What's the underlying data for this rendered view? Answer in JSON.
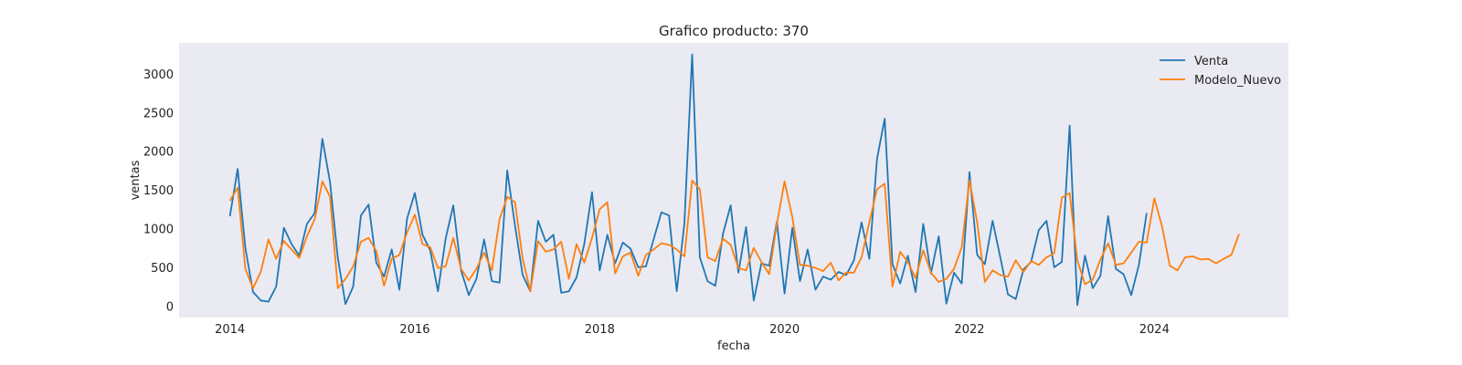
{
  "chart_data": {
    "type": "line",
    "title": "Grafico producto: 370",
    "xlabel": "fecha",
    "ylabel": "ventas",
    "xlim": [
      2013.45,
      2025.45
    ],
    "ylim": [
      -150,
      3400
    ],
    "x_ticks": [
      2014,
      2016,
      2018,
      2020,
      2022,
      2024
    ],
    "x_tick_labels": [
      "2014",
      "2016",
      "2018",
      "2020",
      "2022",
      "2024"
    ],
    "y_ticks": [
      0,
      500,
      1000,
      1500,
      2000,
      2500,
      3000
    ],
    "y_tick_labels": [
      "0",
      "500",
      "1000",
      "1500",
      "2000",
      "2500",
      "3000"
    ],
    "grid": false,
    "background": "#EAEAF2",
    "legend": {
      "position": "top-right",
      "entries": [
        "Venta",
        "Modelo_Nuevo"
      ]
    },
    "series": [
      {
        "name": "Venta",
        "color": "#1F77B4",
        "start": "2014-01",
        "values": [
          1160,
          1770,
          750,
          180,
          70,
          55,
          250,
          1010,
          800,
          650,
          1060,
          1200,
          2160,
          1600,
          620,
          25,
          250,
          1170,
          1310,
          560,
          380,
          730,
          210,
          1130,
          1460,
          920,
          720,
          190,
          870,
          1300,
          460,
          140,
          350,
          860,
          320,
          300,
          1750,
          1040,
          400,
          190,
          1100,
          830,
          920,
          170,
          190,
          370,
          800,
          1470,
          460,
          920,
          550,
          820,
          740,
          500,
          510,
          860,
          1210,
          1170,
          190,
          1070,
          3250,
          630,
          320,
          260,
          930,
          1300,
          430,
          1020,
          70,
          550,
          520,
          1090,
          160,
          1010,
          320,
          730,
          210,
          380,
          340,
          440,
          400,
          590,
          1080,
          610,
          1900,
          2420,
          540,
          290,
          650,
          180,
          1060,
          420,
          900,
          30,
          430,
          290,
          1730,
          660,
          540,
          1100,
          630,
          150,
          90,
          470,
          570,
          980,
          1100,
          500,
          570,
          2330,
          10,
          650,
          230,
          390,
          1160,
          480,
          410,
          140,
          530,
          1200
        ]
      },
      {
        "name": "Modelo_Nuevo",
        "color": "#FF7F0E",
        "start": "2014-01",
        "values": [
          1360,
          1530,
          480,
          230,
          440,
          860,
          610,
          840,
          730,
          620,
          900,
          1120,
          1610,
          1410,
          230,
          350,
          510,
          830,
          880,
          710,
          260,
          610,
          660,
          950,
          1180,
          800,
          760,
          490,
          510,
          880,
          480,
          330,
          480,
          690,
          460,
          1120,
          1410,
          1340,
          610,
          190,
          840,
          700,
          730,
          830,
          350,
          800,
          560,
          880,
          1250,
          1340,
          420,
          640,
          690,
          390,
          660,
          730,
          810,
          790,
          730,
          640,
          1620,
          1510,
          630,
          580,
          870,
          790,
          490,
          460,
          750,
          570,
          410,
          1060,
          1610,
          1150,
          530,
          520,
          490,
          450,
          560,
          330,
          430,
          430,
          630,
          1080,
          1510,
          1580,
          250,
          700,
          570,
          360,
          720,
          430,
          310,
          350,
          480,
          760,
          1630,
          1080,
          310,
          460,
          400,
          380,
          590,
          440,
          580,
          530,
          630,
          680,
          1400,
          1460,
          590,
          280,
          340,
          600,
          810,
          530,
          550,
          690,
          830,
          820,
          1390,
          1030,
          520,
          460,
          630,
          640,
          600,
          610,
          550,
          610,
          660,
          930
        ]
      }
    ]
  }
}
